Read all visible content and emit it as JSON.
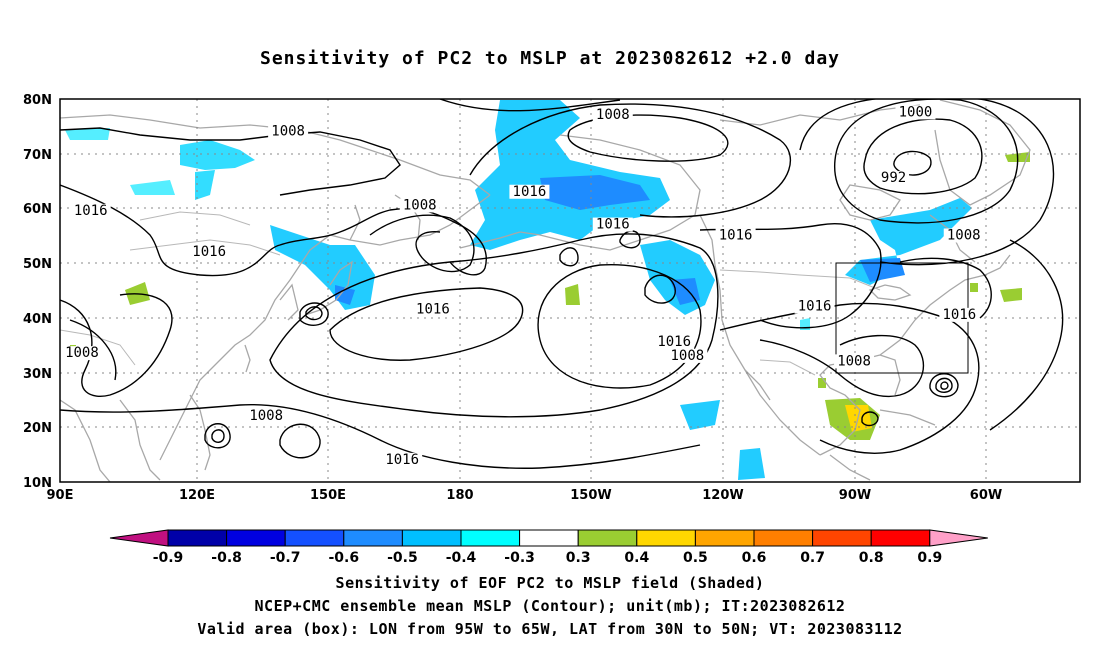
{
  "title": "Sensitivity of PC2 to MSLP at 2023082612 +2.0 day",
  "lat_labels": [
    "80N",
    "70N",
    "60N",
    "50N",
    "40N",
    "30N",
    "20N",
    "10N"
  ],
  "lon_labels": [
    "90E",
    "120E",
    "150E",
    "180",
    "150W",
    "120W",
    "90W",
    "60W"
  ],
  "isobar_labels": [
    {
      "text": "1008",
      "lon": 142,
      "lat": 73.5
    },
    {
      "text": "1016",
      "lon": 97,
      "lat": 59
    },
    {
      "text": "1016",
      "lon": 124,
      "lat": 51.5
    },
    {
      "text": "1008",
      "lon": 172,
      "lat": 60
    },
    {
      "text": "1016",
      "lon": 197,
      "lat": 62.5
    },
    {
      "text": "1008",
      "lon": 216,
      "lat": 76.5
    },
    {
      "text": "1016",
      "lon": 216,
      "lat": 56.5
    },
    {
      "text": "1016",
      "lon": 175,
      "lat": 41
    },
    {
      "text": "1016",
      "lon": 168,
      "lat": 13.5
    },
    {
      "text": "1008",
      "lon": 95,
      "lat": 33
    },
    {
      "text": "1008",
      "lon": 137,
      "lat": 21.5
    },
    {
      "text": "1016",
      "lon": 244,
      "lat": 54.5
    },
    {
      "text": "1016",
      "lon": 230,
      "lat": 35
    },
    {
      "text": "1008",
      "lon": 233,
      "lat": 32.5
    },
    {
      "text": "1016",
      "lon": 262,
      "lat": 41.5
    },
    {
      "text": "1008",
      "lon": 271,
      "lat": 31.5
    },
    {
      "text": "1016",
      "lon": 295,
      "lat": 40
    },
    {
      "text": "1008",
      "lon": 296,
      "lat": 54.5
    },
    {
      "text": "1000",
      "lon": 285,
      "lat": 77
    },
    {
      "text": "992",
      "lon": 280,
      "lat": 65
    }
  ],
  "valid_box": {
    "lon_min": -95,
    "lon_max": -65,
    "lat_min": 30,
    "lat_max": 50
  },
  "colorbar": {
    "labels": [
      "-0.9",
      "-0.8",
      "-0.7",
      "-0.6",
      "-0.5",
      "-0.4",
      "-0.3",
      "0.3",
      "0.4",
      "0.5",
      "0.6",
      "0.7",
      "0.8",
      "0.9"
    ],
    "colors": [
      "#0000a8",
      "#0000e0",
      "#1450ff",
      "#1e8cff",
      "#00bfff",
      "#00ffff",
      "#ffffff",
      "#9acd32",
      "#ffd700",
      "#ffa500",
      "#ff7f00",
      "#ff4500",
      "#ff0000"
    ],
    "low_arrow_color": "#c01080",
    "high_arrow_color": "#ffa0c8"
  },
  "caption": {
    "line1": "Sensitivity of EOF PC2 to MSLP field (Shaded)",
    "line2": "NCEP+CMC ensemble mean MSLP (Contour); unit(mb); IT:2023082612",
    "line3": "Valid area (box): LON from 95W to 65W, LAT from 30N to 50N; VT: 2023083112"
  }
}
